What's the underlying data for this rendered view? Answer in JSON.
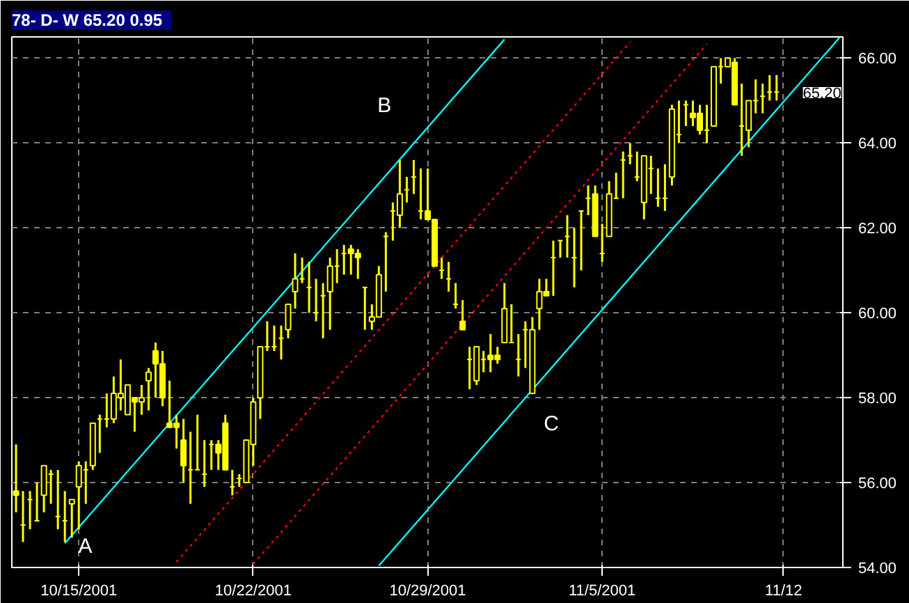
{
  "chart_data": {
    "type": "candlestick",
    "title": "78- D- W 65.20   0.95",
    "color": "#ffff00",
    "categories": [
      null,
      null,
      null,
      null,
      null,
      null,
      null,
      null,
      null,
      "10/15/2001",
      null,
      null,
      null,
      null,
      null,
      null,
      null,
      null,
      null,
      null,
      null,
      null,
      null,
      null,
      null,
      null,
      null,
      null,
      null,
      null,
      null,
      null,
      null,
      null,
      "10/22/2001",
      null,
      null,
      null,
      null,
      null,
      null,
      null,
      null,
      null,
      null,
      null,
      null,
      null,
      null,
      null,
      null,
      null,
      null,
      null,
      null,
      null,
      null,
      null,
      null,
      "10/29/2001",
      null,
      null,
      null,
      null,
      null,
      null,
      null,
      null,
      null,
      null,
      null,
      null,
      null,
      null,
      null,
      null,
      null,
      null,
      null,
      null,
      null,
      null,
      null,
      null,
      "11/5/2001",
      null,
      null,
      null,
      null,
      null,
      null,
      null,
      null,
      null,
      null,
      null,
      null,
      null,
      null,
      null,
      null,
      null,
      null,
      null,
      null,
      null,
      null,
      null,
      null,
      null,
      "11/12",
      null,
      null,
      null,
      null,
      null,
      null,
      null,
      null
    ],
    "ohlc": [
      [
        55.8,
        56.9,
        55.3,
        55.7
      ],
      [
        55.0,
        55.8,
        54.6,
        55.0
      ],
      [
        55.6,
        55.8,
        54.9,
        55.6
      ],
      [
        55.1,
        56.0,
        55.1,
        55.1
      ],
      [
        55.7,
        56.4,
        55.3,
        56.4
      ],
      [
        56.2,
        56.3,
        55.5,
        56.2
      ],
      [
        55.2,
        56.3,
        54.9,
        55.2
      ],
      [
        55.1,
        55.8,
        54.6,
        55.1
      ],
      [
        55.5,
        55.6,
        54.7,
        55.6
      ],
      [
        55.9,
        56.5,
        54.9,
        56.4
      ],
      [
        56.3,
        56.5,
        55.5,
        56.3
      ],
      [
        56.4,
        57.4,
        56.3,
        57.4
      ],
      [
        57.5,
        57.6,
        56.7,
        57.5
      ],
      [
        57.5,
        58.1,
        57.3,
        57.5
      ],
      [
        57.5,
        58.5,
        57.4,
        58.1
      ],
      [
        58.0,
        58.9,
        57.7,
        58.1
      ],
      [
        57.6,
        58.3,
        57.6,
        58.3
      ],
      [
        58.0,
        58.0,
        57.2,
        57.9
      ],
      [
        57.9,
        58.3,
        57.6,
        58.0
      ],
      [
        58.4,
        58.7,
        57.7,
        58.6
      ],
      [
        59.1,
        59.3,
        58.0,
        58.8
      ],
      [
        58.8,
        59.1,
        57.8,
        58.0
      ],
      [
        57.4,
        58.4,
        57.3,
        57.3
      ],
      [
        57.4,
        57.6,
        56.8,
        57.3
      ],
      [
        57.0,
        57.5,
        56.0,
        56.4
      ],
      [
        56.3,
        57.2,
        55.5,
        56.3
      ],
      [
        56.3,
        57.6,
        56.3,
        56.3
      ],
      [
        56.2,
        57.0,
        55.9,
        56.2
      ],
      [
        56.9,
        57.0,
        56.3,
        56.9
      ],
      [
        56.9,
        57.0,
        56.3,
        56.7
      ],
      [
        57.4,
        57.6,
        56.3,
        56.3
      ],
      [
        55.9,
        56.3,
        55.7,
        55.9
      ],
      [
        56.1,
        56.2,
        55.9,
        56.1
      ],
      [
        56.0,
        57.0,
        56.0,
        57.0
      ],
      [
        56.9,
        58.0,
        56.4,
        57.9
      ],
      [
        58.0,
        59.2,
        57.5,
        59.2
      ],
      [
        59.2,
        59.8,
        59.1,
        59.2
      ],
      [
        59.2,
        59.7,
        59.1,
        59.2
      ],
      [
        59.4,
        59.7,
        58.9,
        59.4
      ],
      [
        59.6,
        60.2,
        59.4,
        60.2
      ],
      [
        60.5,
        61.4,
        60.1,
        60.8
      ],
      [
        60.8,
        61.3,
        60.7,
        60.8
      ],
      [
        60.6,
        61.2,
        60.0,
        60.6
      ],
      [
        60.0,
        60.8,
        59.8,
        60.0
      ],
      [
        60.4,
        60.7,
        59.4,
        60.4
      ],
      [
        60.5,
        61.3,
        59.6,
        61.1
      ],
      [
        61.1,
        61.5,
        60.7,
        61.1
      ],
      [
        61.4,
        61.6,
        60.9,
        61.4
      ],
      [
        61.5,
        61.6,
        60.9,
        61.4
      ],
      [
        61.4,
        61.5,
        60.8,
        61.3
      ],
      [
        60.6,
        60.6,
        59.6,
        60.6
      ],
      [
        59.8,
        60.2,
        59.6,
        59.9
      ],
      [
        59.9,
        61.1,
        59.9,
        60.9
      ],
      [
        61.8,
        61.9,
        60.5,
        61.8
      ],
      [
        62.4,
        62.6,
        61.7,
        62.4
      ],
      [
        62.3,
        63.6,
        62.0,
        62.8
      ],
      [
        62.9,
        63.2,
        62.6,
        62.9
      ],
      [
        63.2,
        63.6,
        62.8,
        63.2
      ],
      [
        62.4,
        63.4,
        62.2,
        62.4
      ],
      [
        62.4,
        63.4,
        62.2,
        62.2
      ],
      [
        62.2,
        62.2,
        61.1,
        61.1
      ],
      [
        61.0,
        61.3,
        60.8,
        61.0
      ],
      [
        60.8,
        61.2,
        60.5,
        60.8
      ],
      [
        60.2,
        60.7,
        60.1,
        60.2
      ],
      [
        59.8,
        60.3,
        59.6,
        59.6
      ],
      [
        58.9,
        59.2,
        58.2,
        58.9
      ],
      [
        58.4,
        59.2,
        58.3,
        59.2
      ],
      [
        58.9,
        59.1,
        58.6,
        58.9
      ],
      [
        59.0,
        59.5,
        58.6,
        58.9
      ],
      [
        59.0,
        59.2,
        58.8,
        58.9
      ],
      [
        59.3,
        60.7,
        59.3,
        60.1
      ],
      [
        59.3,
        60.2,
        59.3,
        59.3
      ],
      [
        58.9,
        59.5,
        58.5,
        58.9
      ],
      [
        59.6,
        59.8,
        58.7,
        59.6
      ],
      [
        58.1,
        59.9,
        58.1,
        59.6
      ],
      [
        60.1,
        60.8,
        59.6,
        60.5
      ],
      [
        60.5,
        60.8,
        60.4,
        60.4
      ],
      [
        61.3,
        61.7,
        60.4,
        61.3
      ],
      [
        61.7,
        61.7,
        61.3,
        61.7
      ],
      [
        61.8,
        62.3,
        61.3,
        61.8
      ],
      [
        61.3,
        62.0,
        60.6,
        61.3
      ],
      [
        62.4,
        62.4,
        61.0,
        62.4
      ],
      [
        62.7,
        63.0,
        62.3,
        62.7
      ],
      [
        62.8,
        63.0,
        61.8,
        61.8
      ],
      [
        61.4,
        62.1,
        61.2,
        61.4
      ],
      [
        61.8,
        63.1,
        61.8,
        62.8
      ],
      [
        62.7,
        63.3,
        62.7,
        62.7
      ],
      [
        63.6,
        63.8,
        62.7,
        63.6
      ],
      [
        63.7,
        64.0,
        63.5,
        63.7
      ],
      [
        63.2,
        63.8,
        63.1,
        63.2
      ],
      [
        62.6,
        63.7,
        62.2,
        63.7
      ],
      [
        63.4,
        63.7,
        62.8,
        63.4
      ],
      [
        62.7,
        63.4,
        62.5,
        62.7
      ],
      [
        62.7,
        63.5,
        62.4,
        62.7
      ],
      [
        63.2,
        64.9,
        63.0,
        64.8
      ],
      [
        64.2,
        65.0,
        64.0,
        64.2
      ],
      [
        64.9,
        65.0,
        64.4,
        64.9
      ],
      [
        64.7,
        65.0,
        64.4,
        64.6
      ],
      [
        64.7,
        64.9,
        64.2,
        64.3
      ],
      [
        64.3,
        64.9,
        64.0,
        64.3
      ],
      [
        64.4,
        65.8,
        64.4,
        65.8
      ],
      [
        65.8,
        66.0,
        65.4,
        65.8
      ],
      [
        65.8,
        66.0,
        65.8,
        66.0
      ],
      [
        65.9,
        66.0,
        64.9,
        64.9
      ],
      [
        64.4,
        65.4,
        63.7,
        64.4
      ],
      [
        64.3,
        65.0,
        63.9,
        65.0
      ],
      [
        65.0,
        65.5,
        64.7,
        65.0
      ],
      [
        65.1,
        65.4,
        64.7,
        65.1
      ],
      [
        65.2,
        65.6,
        65.0,
        65.2
      ],
      [
        65.2,
        65.6,
        65.0,
        65.2
      ],
      null,
      null,
      null,
      null,
      null,
      null,
      null,
      null,
      null
    ],
    "series": [
      {
        "type": "line",
        "color": "#00ffff",
        "line_style": "solid",
        "values": [
          null,
          null,
          null,
          null,
          null,
          null,
          null,
          54.57,
          null,
          null,
          null,
          null,
          null,
          null,
          null,
          null,
          null,
          null,
          null,
          null,
          null,
          null,
          null,
          null,
          null,
          null,
          null,
          null,
          null,
          null,
          null,
          null,
          null,
          null,
          null,
          null,
          null,
          null,
          null,
          null,
          null,
          null,
          null,
          null,
          null,
          null,
          null,
          null,
          null,
          null,
          null,
          null,
          null,
          null,
          null,
          null,
          null,
          null,
          null,
          null,
          null,
          null,
          null,
          null,
          null,
          null,
          null,
          null,
          null,
          null,
          66.44,
          null,
          null,
          null,
          null,
          null,
          null,
          null,
          null,
          null,
          null,
          null,
          null,
          null,
          null,
          null,
          null,
          null,
          null,
          null,
          null,
          null,
          null,
          null,
          null,
          null,
          null,
          null,
          null,
          null,
          null,
          null,
          null,
          null,
          null,
          null,
          null,
          null,
          null,
          null,
          null,
          null,
          null,
          null,
          null,
          null,
          null,
          null,
          null
        ]
      },
      {
        "type": "line",
        "color": "#00ffff",
        "line_style": "solid",
        "values": [
          null,
          null,
          null,
          null,
          null,
          null,
          null,
          null,
          null,
          null,
          null,
          null,
          null,
          null,
          null,
          null,
          null,
          null,
          null,
          null,
          null,
          null,
          null,
          null,
          null,
          null,
          null,
          null,
          null,
          null,
          null,
          null,
          null,
          null,
          null,
          null,
          null,
          null,
          null,
          null,
          null,
          null,
          null,
          null,
          null,
          null,
          null,
          null,
          null,
          null,
          null,
          null,
          54.04,
          null,
          null,
          null,
          null,
          null,
          null,
          null,
          null,
          null,
          null,
          null,
          null,
          null,
          null,
          null,
          null,
          null,
          null,
          null,
          null,
          null,
          null,
          null,
          null,
          null,
          null,
          null,
          null,
          null,
          null,
          null,
          null,
          null,
          null,
          null,
          null,
          null,
          null,
          null,
          null,
          null,
          null,
          null,
          null,
          null,
          null,
          null,
          null,
          null,
          null,
          null,
          null,
          null,
          null,
          null,
          null,
          null,
          null,
          null,
          null,
          null,
          null,
          null,
          null,
          null,
          66.48
        ]
      },
      {
        "type": "line",
        "color": "#ff0000",
        "line_style": "dotted",
        "values": [
          null,
          null,
          null,
          null,
          null,
          null,
          null,
          null,
          null,
          null,
          null,
          null,
          null,
          null,
          null,
          null,
          null,
          null,
          null,
          null,
          null,
          null,
          null,
          54.13,
          null,
          null,
          null,
          null,
          null,
          null,
          null,
          null,
          null,
          null,
          null,
          null,
          null,
          null,
          null,
          null,
          null,
          null,
          null,
          null,
          null,
          null,
          null,
          null,
          null,
          null,
          null,
          null,
          null,
          null,
          null,
          null,
          null,
          null,
          null,
          null,
          null,
          null,
          null,
          null,
          null,
          null,
          null,
          null,
          null,
          null,
          null,
          null,
          null,
          null,
          null,
          null,
          null,
          null,
          null,
          null,
          null,
          null,
          null,
          null,
          null,
          null,
          null,
          null,
          66.38,
          null,
          null,
          null,
          null,
          null,
          null,
          null,
          null,
          null,
          null,
          null,
          null,
          null,
          null,
          null,
          null,
          null,
          null,
          null,
          null,
          null,
          null,
          null,
          null,
          null,
          null,
          null,
          null,
          null,
          null
        ]
      },
      {
        "type": "line",
        "color": "#ff0000",
        "line_style": "dotted",
        "values": [
          null,
          null,
          null,
          null,
          null,
          null,
          null,
          null,
          null,
          null,
          null,
          null,
          null,
          null,
          null,
          null,
          null,
          null,
          null,
          null,
          null,
          null,
          null,
          null,
          null,
          null,
          null,
          null,
          null,
          null,
          null,
          null,
          null,
          null,
          54.08,
          null,
          null,
          null,
          null,
          null,
          null,
          null,
          null,
          null,
          null,
          null,
          null,
          null,
          null,
          null,
          null,
          null,
          null,
          null,
          null,
          null,
          null,
          null,
          null,
          null,
          null,
          null,
          null,
          null,
          null,
          null,
          null,
          null,
          null,
          null,
          null,
          null,
          null,
          null,
          null,
          null,
          null,
          null,
          null,
          null,
          null,
          null,
          null,
          null,
          null,
          null,
          null,
          null,
          null,
          null,
          null,
          null,
          null,
          null,
          null,
          null,
          null,
          null,
          null,
          66.33,
          null,
          null,
          null,
          null,
          null,
          null,
          null,
          null,
          null,
          null,
          null,
          null,
          null,
          null,
          null,
          null,
          null,
          null,
          null
        ]
      }
    ],
    "annotations": [
      "A",
      "B",
      "C",
      "65.20"
    ],
    "ylim": [
      54.0,
      66.5
    ],
    "yticks": [
      {
        "value": 54,
        "label": "54.00"
      },
      {
        "value": 56,
        "label": "56.00"
      },
      {
        "value": 58,
        "label": "58.00"
      },
      {
        "value": 60,
        "label": "60.00"
      },
      {
        "value": 62,
        "label": "62.00"
      },
      {
        "value": 64,
        "label": "64.00"
      },
      {
        "value": 66,
        "label": "66.00"
      }
    ],
    "grid": true,
    "marker": "none"
  }
}
